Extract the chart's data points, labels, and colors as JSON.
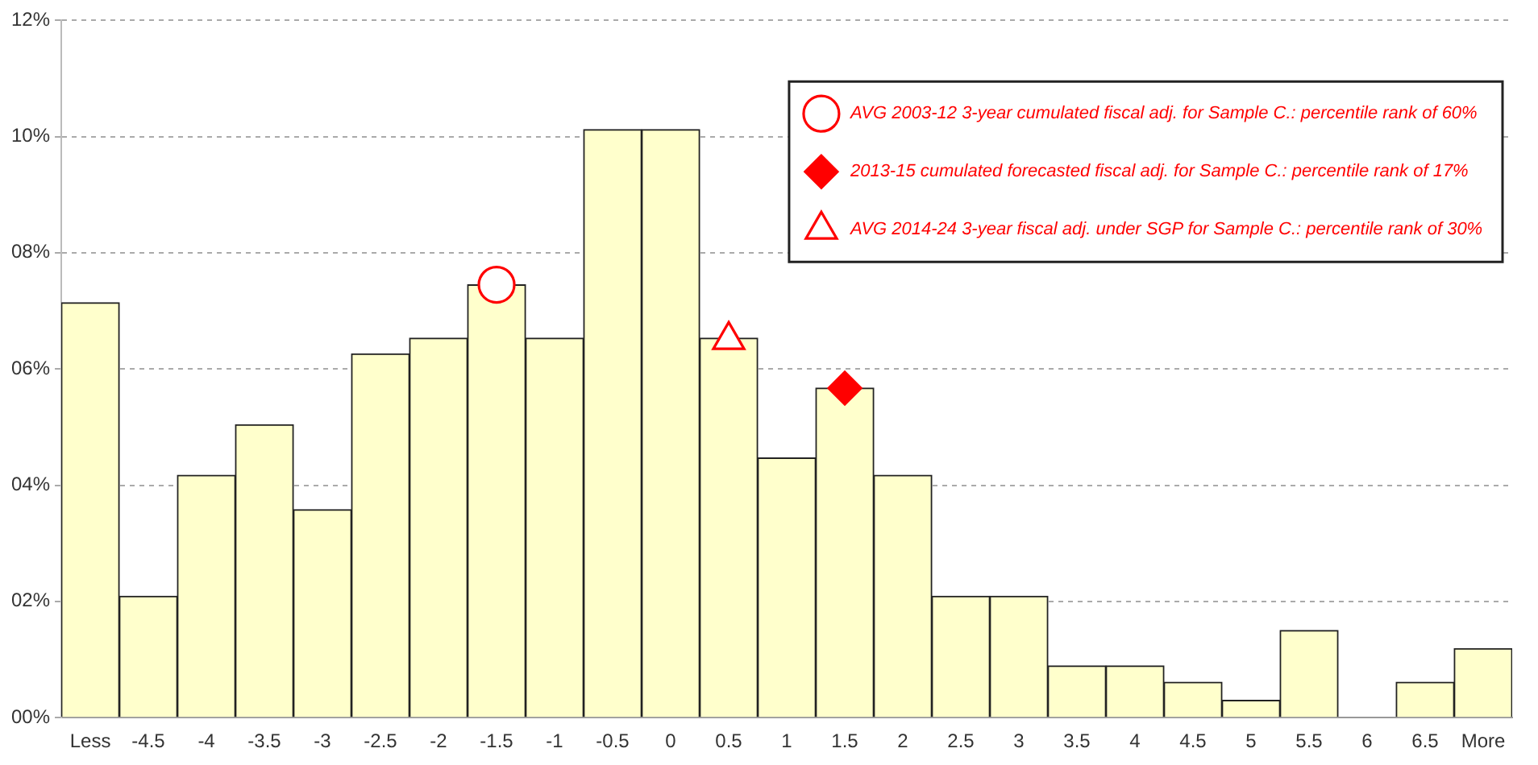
{
  "chart_data": {
    "type": "bar",
    "categories": [
      "Less",
      "-4.5",
      "-4",
      "-3.5",
      "-3",
      "-2.5",
      "-2",
      "-1.5",
      "-1",
      "-0.5",
      "0",
      "0.5",
      "1",
      "1.5",
      "2",
      "2.5",
      "3",
      "3.5",
      "4",
      "4.5",
      "5",
      "5.5",
      "6",
      "6.5",
      "More"
    ],
    "series": [
      {
        "color": "#ffffcc",
        "values": [
          7.14,
          2.09,
          4.17,
          5.04,
          3.58,
          6.26,
          6.53,
          7.45,
          6.53,
          10.12,
          10.12,
          6.53,
          4.47,
          5.67,
          4.17,
          2.09,
          2.09,
          0.89,
          0.89,
          0.61,
          0.3,
          1.5,
          0,
          0.61,
          1.19
        ]
      },
      {
        "type": "scatter",
        "name": "AVG 2003-12 3-year cumulated fiscal adj. for Sample C.: percentile rank of 60%",
        "color": "#ff0000",
        "marker": "circle",
        "x": [
          "-1.5"
        ],
        "values": [
          7.45
        ]
      },
      {
        "type": "scatter",
        "name": "2013-15 cumulated forecasted fiscal adj. for Sample C.: percentile rank of 17%",
        "color": "#ff0000",
        "marker": "diamond",
        "x": [
          "1.5"
        ],
        "values": [
          5.67
        ]
      },
      {
        "type": "scatter",
        "name": "AVG 2014-24 3-year fiscal adj. under SGP for Sample C.: percentile rank of 30%",
        "color": "#ff0000",
        "marker": "triangle",
        "x": [
          "0.5"
        ],
        "values": [
          6.5
        ]
      }
    ],
    "ylim": [
      0,
      12
    ],
    "yticks": [
      {
        "value": 0,
        "label": "00%"
      },
      {
        "value": 2,
        "label": "02%"
      },
      {
        "value": 4,
        "label": "04%"
      },
      {
        "value": 6,
        "label": "06%"
      },
      {
        "value": 8,
        "label": "08%"
      },
      {
        "value": 10,
        "label": "10%"
      },
      {
        "value": 12,
        "label": "12%"
      }
    ],
    "grid": "y",
    "legend": "top right"
  }
}
